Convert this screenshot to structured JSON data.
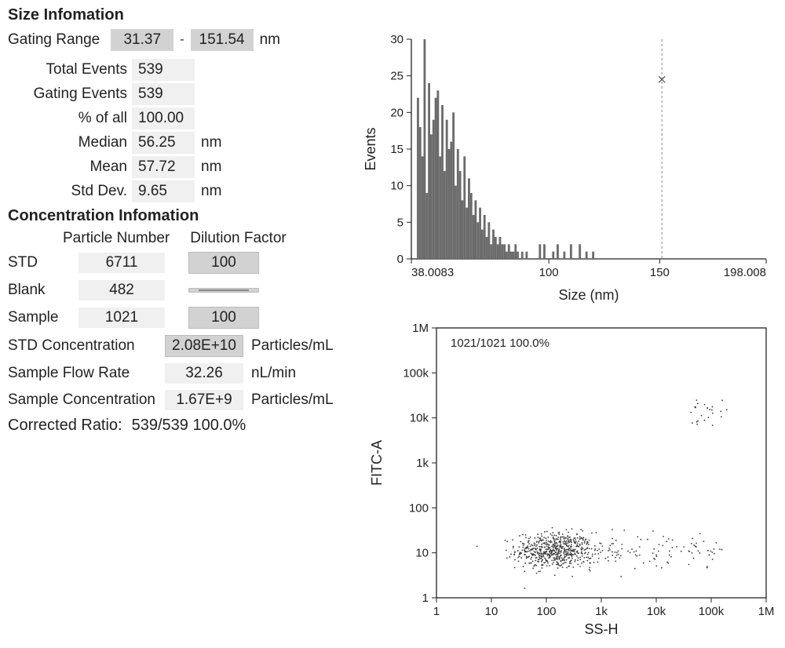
{
  "size_info": {
    "title": "Size Infomation",
    "gating_label": "Gating Range",
    "gating_min": "31.37",
    "gating_dash": "-",
    "gating_max": "151.54",
    "gating_unit": "nm",
    "stats": {
      "total_events_label": "Total  Events",
      "total_events": "539",
      "gating_events_label": "Gating Events",
      "gating_events": "539",
      "pct_label": "% of all",
      "pct": "100.00",
      "median_label": "Median",
      "median": "56.25",
      "median_unit": "nm",
      "mean_label": "Mean",
      "mean": "57.72",
      "mean_unit": "nm",
      "std_label": "Std Dev.",
      "std": "9.65",
      "std_unit": "nm"
    }
  },
  "conc_info": {
    "title": "Concentration Infomation",
    "col_particle": "Particle Number",
    "col_dilution": "Dilution Factor",
    "rows": {
      "std": {
        "label": "STD",
        "pn": "6711",
        "df": "100"
      },
      "blank": {
        "label": "Blank",
        "pn": "482"
      },
      "sample": {
        "label": "Sample",
        "pn": "1021",
        "df": "100"
      }
    },
    "std_conc_label": "STD Concentration",
    "std_conc": "2.08E+10",
    "std_conc_unit": "Particles/mL",
    "flow_label": "Sample Flow Rate",
    "flow": "32.26",
    "flow_unit": "nL/min",
    "samp_conc_label": "Sample Concentration",
    "samp_conc": "1.67E+9",
    "samp_conc_unit": "Particles/mL",
    "corrected_label": "Corrected Ratio:",
    "corrected_val": "539/539  100.0%"
  },
  "histogram": {
    "type": "bar",
    "xlabel": "Size (nm)",
    "ylabel": "Events",
    "xlim": [
      38.0083,
      198.008
    ],
    "ylim": [
      0,
      30
    ],
    "xticks": [
      38.0083,
      100,
      150,
      198.008
    ],
    "xtick_labels": [
      "38.0083",
      "100",
      "150",
      "198.008"
    ],
    "yticks": [
      0,
      5,
      10,
      15,
      20,
      25,
      30
    ],
    "marker_x": 151,
    "marker_y": 24.5,
    "bar_color": "#6b6b6b",
    "bg": "#ffffff",
    "border": "#222222",
    "axis_fontsize": 15,
    "label_fontsize": 18,
    "bars": [
      [
        41,
        22
      ],
      [
        42,
        18
      ],
      [
        43,
        14
      ],
      [
        44,
        30
      ],
      [
        45,
        9
      ],
      [
        46,
        24
      ],
      [
        47,
        17
      ],
      [
        48,
        19
      ],
      [
        49,
        22
      ],
      [
        50,
        23
      ],
      [
        51,
        14
      ],
      [
        52,
        21
      ],
      [
        53,
        12
      ],
      [
        54,
        19
      ],
      [
        55,
        15
      ],
      [
        56,
        16
      ],
      [
        57,
        20
      ],
      [
        58,
        10
      ],
      [
        59,
        15
      ],
      [
        60,
        12
      ],
      [
        61,
        8
      ],
      [
        62,
        14
      ],
      [
        63,
        7
      ],
      [
        64,
        11
      ],
      [
        65,
        9
      ],
      [
        66,
        6
      ],
      [
        67,
        8
      ],
      [
        68,
        5
      ],
      [
        69,
        7
      ],
      [
        70,
        4
      ],
      [
        71,
        6
      ],
      [
        72,
        3
      ],
      [
        73,
        5
      ],
      [
        74,
        2
      ],
      [
        75,
        4
      ],
      [
        76,
        3
      ],
      [
        77,
        2
      ],
      [
        78,
        3
      ],
      [
        79,
        2
      ],
      [
        80,
        2
      ],
      [
        81,
        1
      ],
      [
        82,
        2
      ],
      [
        83,
        1
      ],
      [
        84,
        1
      ],
      [
        85,
        2
      ],
      [
        86,
        1
      ],
      [
        88,
        1
      ],
      [
        90,
        1
      ],
      [
        96,
        2
      ],
      [
        98,
        2
      ],
      [
        102,
        1
      ],
      [
        104,
        2
      ],
      [
        107,
        1
      ],
      [
        110,
        2
      ],
      [
        114,
        2
      ],
      [
        117,
        1
      ],
      [
        120,
        1
      ]
    ]
  },
  "scatter": {
    "type": "scatter-log",
    "xlabel": "SS-H",
    "ylabel": "FITC-A",
    "annot": "1021/1021 100.0%",
    "xlim_log": [
      0,
      6
    ],
    "ylim_log": [
      0,
      6
    ],
    "xticks": [
      1,
      10,
      100,
      1000,
      10000,
      100000,
      1000000
    ],
    "xtick_labels": [
      "1",
      "10",
      "100",
      "1k",
      "10k",
      "100k",
      "1M"
    ],
    "yticks": [
      1,
      10,
      100,
      1000,
      10000,
      100000,
      1000000
    ],
    "ytick_labels": [
      "1",
      "10",
      "100",
      "1k",
      "10k",
      "100k",
      "1M"
    ],
    "point_color": "#3a3a3a",
    "bg": "#ffffff",
    "border": "#222222",
    "cluster_main": {
      "cx_log": 2.15,
      "cy_log": 1.05,
      "rx_log": 0.35,
      "ry_log": 0.2,
      "n": 600
    },
    "tail": {
      "x_log": [
        2.4,
        5.2
      ],
      "y_log_center": 1.05,
      "y_log_spread": 0.15,
      "n": 120
    },
    "upper_sparse": {
      "x_log": [
        4.6,
        5.3
      ],
      "y_log": [
        3.8,
        4.4
      ],
      "n": 25
    }
  }
}
